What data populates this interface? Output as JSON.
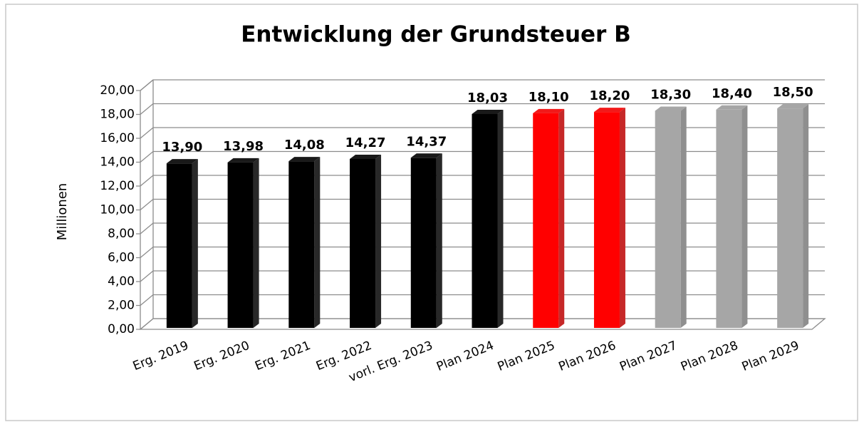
{
  "chart_data": {
    "type": "bar3d",
    "title": "Entwicklung der Grundsteuer B",
    "y_label": "Millionen",
    "categories": [
      "Erg. 2019",
      "Erg. 2020",
      "Erg. 2021",
      "Erg. 2022",
      "vorl. Erg. 2023",
      "Plan 2024",
      "Plan 2025",
      "Plan 2026",
      "Plan 2027",
      "Plan 2028",
      "Plan 2029"
    ],
    "values": [
      13.9,
      13.98,
      14.08,
      14.27,
      14.37,
      18.03,
      18.1,
      18.2,
      18.3,
      18.4,
      18.5
    ],
    "value_labels": [
      "13,90",
      "13,98",
      "14,08",
      "14,27",
      "14,37",
      "18,03",
      "18,10",
      "18,20",
      "18,30",
      "18,40",
      "18,50"
    ],
    "colors": [
      "#000000",
      "#000000",
      "#000000",
      "#000000",
      "#000000",
      "#000000",
      "#ff0000",
      "#ff0000",
      "#a6a6a6",
      "#a6a6a6",
      "#a6a6a6"
    ],
    "ylim": [
      0,
      20
    ],
    "yticks": [
      {
        "value": 0,
        "label": "0,00"
      },
      {
        "value": 2,
        "label": "2,00"
      },
      {
        "value": 4,
        "label": "4,00"
      },
      {
        "value": 6,
        "label": "6,00"
      },
      {
        "value": 8,
        "label": "8,00"
      },
      {
        "value": 10,
        "label": "10,00"
      },
      {
        "value": 12,
        "label": "12,00"
      },
      {
        "value": 14,
        "label": "14,00"
      },
      {
        "value": 16,
        "label": "16,00"
      },
      {
        "value": 18,
        "label": "18,00"
      },
      {
        "value": 20,
        "label": "20,00"
      }
    ],
    "grid": true
  }
}
